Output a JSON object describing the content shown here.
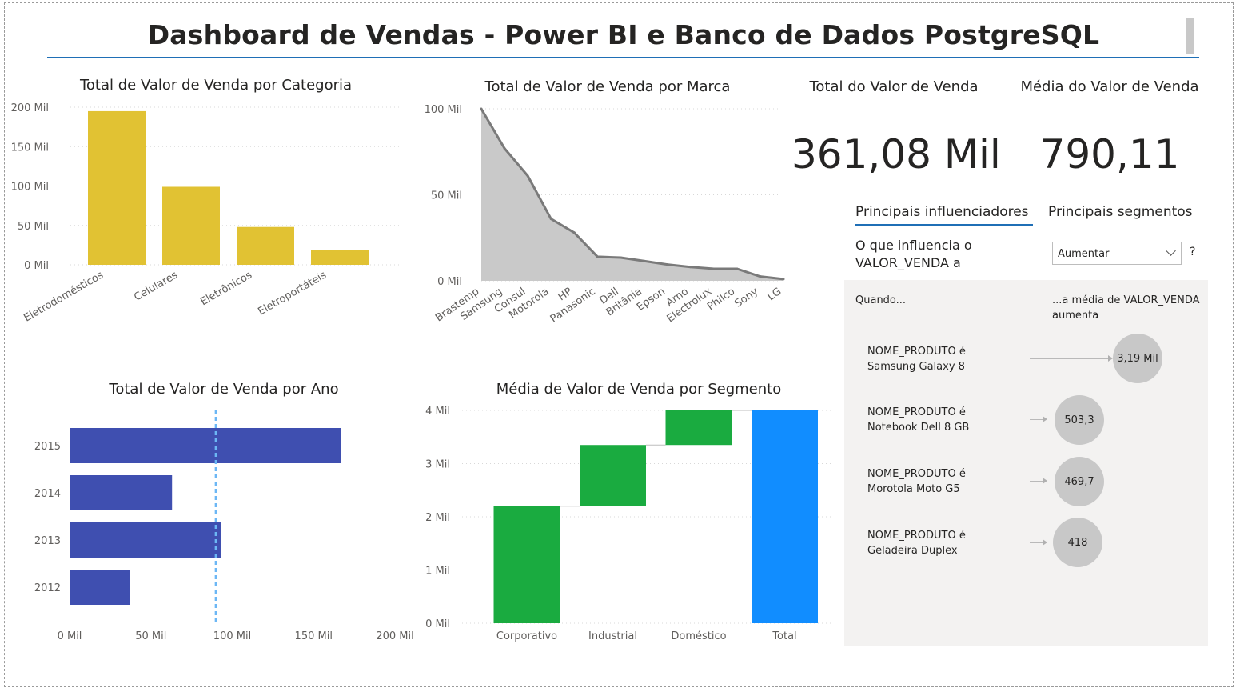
{
  "header": {
    "title": "Dashboard de Vendas - Power BI e Banco de Dados PostgreSQL"
  },
  "colors": {
    "category_bar": "#e1c233",
    "brand_area": "#c9c9c9",
    "brand_line": "#7a7a7a",
    "year_bar": "#3f4fb0",
    "waterfall_increase": "#1aab40",
    "waterfall_total": "#118dff",
    "accent": "#1f6fb6"
  },
  "category_chart": {
    "chart_data": {
      "type": "bar",
      "title": "Total de Valor de Venda por Categoria",
      "categories": [
        "Eletrodomésticos",
        "Celulares",
        "Eletrônicos",
        "Eletroportáteis"
      ],
      "values": [
        195,
        99,
        48,
        19
      ],
      "unit": "Mil",
      "yticks": [
        "0 Mil",
        "50 Mil",
        "100 Mil",
        "150 Mil",
        "200 Mil"
      ],
      "ylim": [
        0,
        200
      ],
      "grid": true
    }
  },
  "brand_chart": {
    "chart_data": {
      "type": "area",
      "title": "Total de Valor de Venda por Marca",
      "categories": [
        "Brastemp",
        "Samsung",
        "Consul",
        "Motorola",
        "HP",
        "Panasonic",
        "Dell",
        "Britânia",
        "Epson",
        "Arno",
        "Electrolux",
        "Philco",
        "Sony",
        "LG"
      ],
      "values": [
        100,
        77,
        61,
        36,
        28,
        14,
        13.5,
        11.5,
        9.5,
        8,
        7,
        7,
        2.5,
        1
      ],
      "unit": "Mil",
      "yticks": [
        "0 Mil",
        "50 Mil",
        "100 Mil"
      ],
      "ylim": [
        0,
        100
      ],
      "grid": true
    }
  },
  "year_chart": {
    "chart_data": {
      "type": "bar",
      "orientation": "horizontal",
      "title": "Total de Valor de Venda por Ano",
      "categories": [
        "2015",
        "2014",
        "2013",
        "2012"
      ],
      "values": [
        167,
        63,
        93,
        37
      ],
      "unit": "Mil",
      "xticks": [
        "0 Mil",
        "50 Mil",
        "100 Mil",
        "150 Mil",
        "200 Mil"
      ],
      "xlim": [
        0,
        200
      ],
      "average_line": 90,
      "grid": true
    }
  },
  "segment_chart": {
    "chart_data": {
      "type": "waterfall",
      "title": "Média de Valor de Venda por Segmento",
      "categories": [
        "Corporativo",
        "Industrial",
        "Doméstico",
        "Total"
      ],
      "values": [
        2.2,
        1.15,
        0.65,
        4.0
      ],
      "unit": "Mil",
      "yticks": [
        "0 Mil",
        "1 Mil",
        "2 Mil",
        "3 Mil",
        "4 Mil"
      ],
      "ylim": [
        0,
        4
      ],
      "grid": true
    }
  },
  "kpis": [
    {
      "title": "Total do Valor de Venda",
      "value": "361,08 Mil"
    },
    {
      "title": "Média do Valor de Venda",
      "value": "790,11"
    }
  ],
  "influencers": {
    "tabs": [
      "Principais influenciadores",
      "Principais segmentos"
    ],
    "question": "O que influencia o VALOR_VENDA a",
    "dropdown_value": "Aumentar",
    "help": "?",
    "when_label": "Quando...",
    "result_label": "...a média de VALOR_VENDA aumenta",
    "items": [
      {
        "field": "NOME_PRODUTO é",
        "value": "Samsung Galaxy 8",
        "impact": "3,19 Mil"
      },
      {
        "field": "NOME_PRODUTO é",
        "value": "Notebook Dell 8 GB",
        "impact": "503,3"
      },
      {
        "field": "NOME_PRODUTO é",
        "value": "Morotola Moto G5",
        "impact": "469,7"
      },
      {
        "field": "NOME_PRODUTO é",
        "value": "Geladeira Duplex",
        "impact": "418"
      }
    ]
  }
}
